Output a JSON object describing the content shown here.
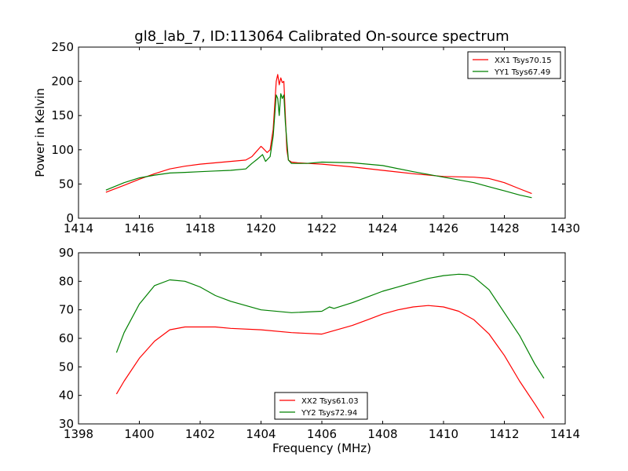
{
  "title": "gl8_lab_7, ID:113064 Calibrated On-source spectrum",
  "colors": {
    "red": "#ff0000",
    "green": "#008000"
  },
  "chart_data": [
    {
      "type": "line",
      "title": "gl8_lab_7, ID:113064 Calibrated On-source spectrum",
      "xlabel": "",
      "ylabel": "Power in Kelvin",
      "xlim": [
        1414,
        1430
      ],
      "ylim": [
        0,
        250
      ],
      "xticks": [
        "1414",
        "1416",
        "1418",
        "1420",
        "1422",
        "1424",
        "1426",
        "1428",
        "1430"
      ],
      "yticks": [
        "0",
        "50",
        "100",
        "150",
        "200",
        "250"
      ],
      "legend_position": "top-right",
      "series": [
        {
          "name": "XX1 Tsys70.15",
          "color": "#ff0000",
          "x": [
            1414.9,
            1415.5,
            1416.0,
            1416.5,
            1417.0,
            1417.5,
            1418.0,
            1418.5,
            1419.0,
            1419.5,
            1419.7,
            1419.8,
            1420.0,
            1420.05,
            1420.2,
            1420.3,
            1420.4,
            1420.5,
            1420.55,
            1420.6,
            1420.65,
            1420.7,
            1420.75,
            1420.8,
            1420.85,
            1420.9,
            1421.0,
            1421.2,
            1422.0,
            1423.0,
            1424.0,
            1425.0,
            1426.0,
            1427.0,
            1427.5,
            1428.0,
            1428.5,
            1428.9
          ],
          "y": [
            38,
            48,
            57,
            65,
            72,
            76,
            79,
            81,
            83,
            85,
            90,
            95,
            105,
            103,
            96,
            100,
            130,
            200,
            210,
            195,
            205,
            198,
            200,
            150,
            100,
            85,
            82,
            81,
            79,
            75,
            70,
            65,
            61,
            60,
            58,
            52,
            43,
            36
          ]
        },
        {
          "name": "YY1 Tsys67.49",
          "color": "#008000",
          "x": [
            1414.9,
            1415.5,
            1416.0,
            1416.5,
            1417.0,
            1417.5,
            1418.0,
            1418.5,
            1419.0,
            1419.5,
            1419.7,
            1419.9,
            1420.05,
            1420.15,
            1420.3,
            1420.4,
            1420.5,
            1420.55,
            1420.6,
            1420.65,
            1420.7,
            1420.75,
            1420.8,
            1420.9,
            1421.0,
            1421.5,
            1422.0,
            1423.0,
            1424.0,
            1425.0,
            1426.0,
            1427.0,
            1427.5,
            1428.0,
            1428.5,
            1428.9
          ],
          "y": [
            41,
            52,
            59,
            63,
            66,
            67,
            68,
            69,
            70,
            72,
            80,
            87,
            93,
            83,
            90,
            120,
            180,
            175,
            150,
            182,
            175,
            180,
            140,
            85,
            80,
            80,
            82,
            81,
            77,
            68,
            60,
            52,
            46,
            40,
            34,
            30
          ]
        }
      ]
    },
    {
      "type": "line",
      "title": "",
      "xlabel": "Frequency (MHz)",
      "ylabel": "",
      "xlim": [
        1398,
        1414
      ],
      "ylim": [
        30,
        90
      ],
      "xticks": [
        "1398",
        "1400",
        "1402",
        "1404",
        "1406",
        "1408",
        "1410",
        "1412",
        "1414"
      ],
      "yticks": [
        "30",
        "40",
        "50",
        "60",
        "70",
        "80",
        "90"
      ],
      "legend_position": "lower-center",
      "series": [
        {
          "name": "XX2 Tsys61.03",
          "color": "#ff0000",
          "x": [
            1399.25,
            1399.5,
            1400.0,
            1400.5,
            1401.0,
            1401.5,
            1402.0,
            1402.5,
            1403.0,
            1404.0,
            1405.0,
            1406.0,
            1406.5,
            1407.0,
            1407.5,
            1408.0,
            1408.5,
            1409.0,
            1409.5,
            1410.0,
            1410.5,
            1411.0,
            1411.5,
            1412.0,
            1412.5,
            1413.0,
            1413.3
          ],
          "y": [
            40.5,
            45,
            53,
            59,
            63,
            64,
            64,
            64,
            63.5,
            63,
            62,
            61.5,
            63,
            64.5,
            66.5,
            68.5,
            70,
            71,
            71.5,
            71,
            69.5,
            66.5,
            61.5,
            54,
            45,
            37,
            32
          ]
        },
        {
          "name": "YY2 Tsys72.94",
          "color": "#008000",
          "x": [
            1399.25,
            1399.5,
            1400.0,
            1400.5,
            1401.0,
            1401.5,
            1402.0,
            1402.5,
            1403.0,
            1404.0,
            1405.0,
            1406.0,
            1406.25,
            1406.4,
            1407.0,
            1407.5,
            1408.0,
            1408.5,
            1409.0,
            1409.5,
            1410.0,
            1410.5,
            1410.8,
            1411.0,
            1411.5,
            1412.0,
            1412.5,
            1413.0,
            1413.3
          ],
          "y": [
            55,
            62,
            72,
            78.5,
            80.5,
            80,
            78,
            75,
            73,
            70,
            69,
            69.5,
            71,
            70.5,
            72.5,
            74.5,
            76.5,
            78,
            79.5,
            81,
            82,
            82.5,
            82.3,
            81.5,
            77,
            69,
            61,
            51,
            46
          ]
        }
      ]
    }
  ]
}
